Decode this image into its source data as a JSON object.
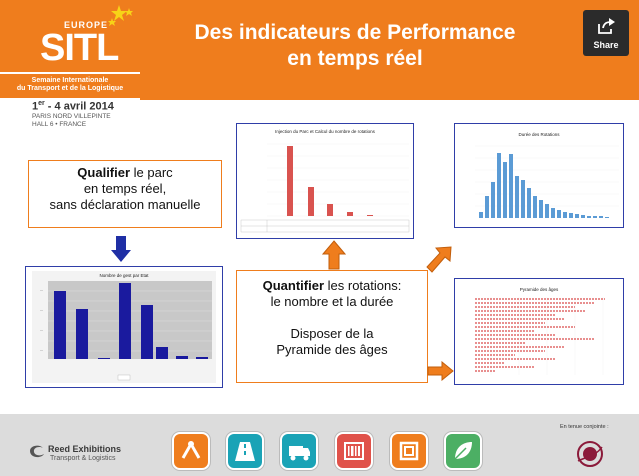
{
  "header": {
    "title_line1": "Des indicateurs de Performance",
    "title_line2": "en temps réel",
    "bg_color": "#ef7d1d"
  },
  "logo": {
    "europe": "EUROPE",
    "name": "SITL",
    "subtitle_line1": "Semaine Internationale",
    "subtitle_line2": "du Transport et de la Logistique",
    "date_prefix": "1",
    "date_sup": "er",
    "date_rest": " - 4 avril 2014",
    "venue_line1": "PARIS NORD VILLEPINTE",
    "venue_line2": "HALL 6 • FRANCE"
  },
  "share": {
    "label": "Share",
    "icon": "share-icon"
  },
  "qualify": {
    "bold": "Qualifier",
    "rest1": " le parc",
    "line2": "en temps réel,",
    "line3": "sans déclaration manuelle"
  },
  "quantify": {
    "bold": "Quantifier",
    "rest1": " les rotations:",
    "line2": "le nombre et la durée",
    "line3": "Disposer de la",
    "line4": "Pyramide des âges"
  },
  "charts": {
    "chart1_title": "Nombre de gest par Etat",
    "chart2_title": "Injection du Parc et Calcul du nombre de rotations",
    "chart3_title": "Durée des Rotations",
    "chart4_title": "Pyramide des âges"
  },
  "footer": {
    "reed_name": "Reed Exhibitions",
    "reed_sub": "Transport & Logistics",
    "conjoint": "En tenue conjointe :",
    "tile_colors": [
      "#ef7d1d",
      "#1aa3b6",
      "#1aa3b6",
      "#e0524a",
      "#ef7d1d",
      "#4caf64"
    ],
    "icons": [
      "route-icon",
      "road-icon",
      "truck-icon",
      "barcode-icon",
      "package-icon",
      "leaf-icon"
    ]
  }
}
